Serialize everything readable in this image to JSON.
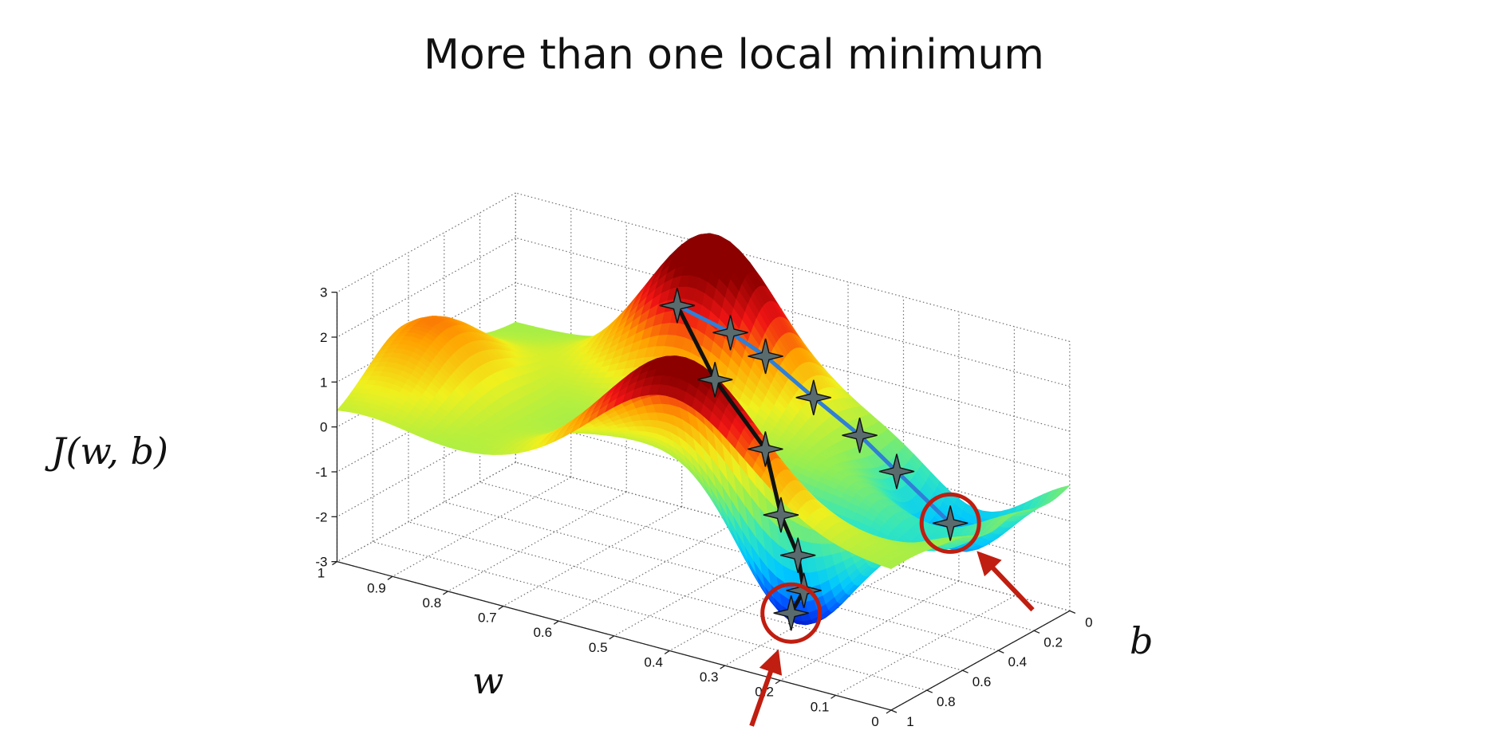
{
  "chart_data": {
    "type": "surface",
    "title": "More than one local minimum",
    "zlabel": "J(w, b)",
    "xlabel": "w",
    "ylabel": "b",
    "w_ticks": [
      "1",
      "0.9",
      "0.8",
      "0.7",
      "0.6",
      "0.5",
      "0.4",
      "0.3",
      "0.2",
      "0.1",
      "0"
    ],
    "b_ticks": [
      "0",
      "0.2",
      "0.4",
      "0.6",
      "0.8",
      "1"
    ],
    "z_ticks": [
      "3",
      "2",
      "1",
      "0",
      "-1",
      "-2",
      "-3"
    ],
    "w_range": [
      0,
      1
    ],
    "b_range": [
      0,
      1
    ],
    "z_range": [
      -3,
      3
    ],
    "grid": true,
    "colormap": [
      "#0000b4",
      "#0050ff",
      "#00c8ff",
      "#32e6be",
      "#96ee50",
      "#f0f01e",
      "#ffa000",
      "#f01414",
      "#8c0000"
    ],
    "series": [
      {
        "color": "#111111",
        "points": [
          [
            0.66,
            0.15,
            1.95
          ],
          [
            0.55,
            0.28,
            0.95
          ],
          [
            0.43,
            0.37,
            0.0
          ],
          [
            0.36,
            0.5,
            -0.95
          ],
          [
            0.31,
            0.56,
            -1.55
          ],
          [
            0.28,
            0.62,
            -2.1
          ],
          [
            0.29,
            0.66,
            -2.55
          ]
        ]
      },
      {
        "color": "#2f7fd6",
        "points": [
          [
            0.66,
            0.15,
            1.95
          ],
          [
            0.58,
            0.1,
            1.5
          ],
          [
            0.52,
            0.09,
            1.15
          ],
          [
            0.43,
            0.1,
            0.55
          ],
          [
            0.35,
            0.09,
            -0.05
          ],
          [
            0.28,
            0.1,
            -0.6
          ],
          [
            0.18,
            0.11,
            -1.4
          ]
        ]
      }
    ],
    "highlighted_minima": [
      {
        "w": 0.29,
        "b": 0.66,
        "z": -2.55
      },
      {
        "w": 0.18,
        "b": 0.11,
        "z": -1.4
      }
    ]
  }
}
